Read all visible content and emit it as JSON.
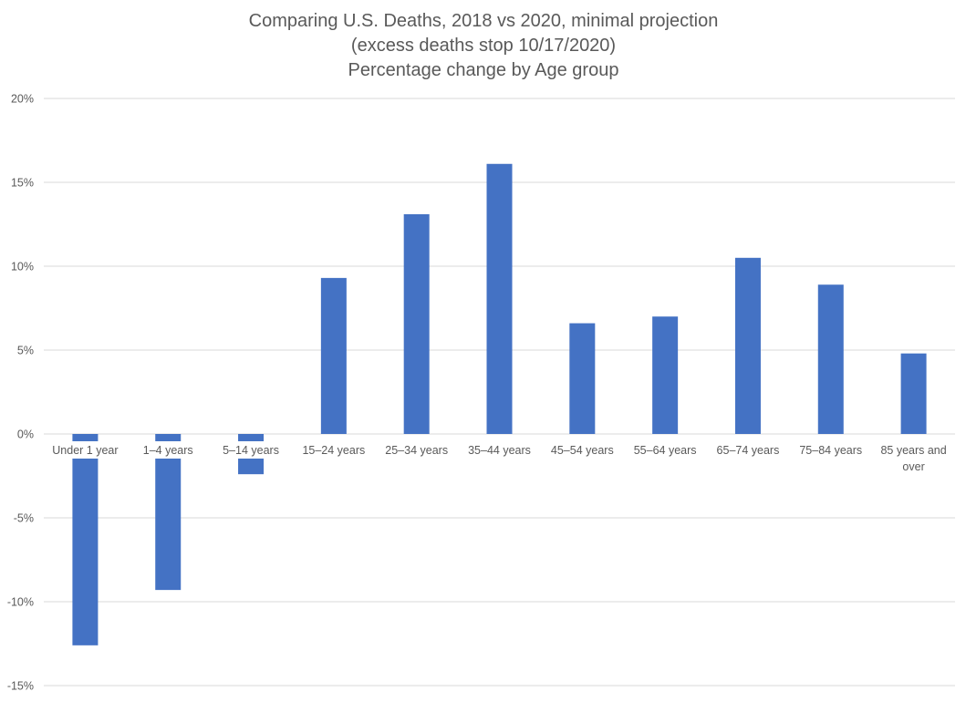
{
  "chart_data": {
    "type": "bar",
    "title": [
      "Comparing U.S. Deaths, 2018 vs 2020, minimal projection",
      "(excess deaths stop 10/17/2020)",
      "Percentage change by Age group"
    ],
    "xlabel": "",
    "ylabel": "",
    "ylim": [
      -15,
      20
    ],
    "yticks": [
      20,
      15,
      10,
      5,
      0,
      -5,
      -10,
      -15
    ],
    "ytick_labels": [
      "20%",
      "15%",
      "10%",
      "5%",
      "0%",
      "-5%",
      "-10%",
      "-15%"
    ],
    "grid": true,
    "legend": "none",
    "bar_color": "#4472C4",
    "categories": [
      [
        "Under 1 year"
      ],
      [
        "1–4 years"
      ],
      [
        "5–14 years"
      ],
      [
        "15–24 years"
      ],
      [
        "25–34 years"
      ],
      [
        "35–44 years"
      ],
      [
        "45–54 years"
      ],
      [
        "55–64 years"
      ],
      [
        "65–74 years"
      ],
      [
        "75–84 years"
      ],
      [
        "85 years and",
        "over"
      ]
    ],
    "values": [
      -12.6,
      -9.3,
      -2.4,
      9.3,
      13.1,
      16.1,
      6.6,
      7.0,
      10.5,
      8.9,
      4.8
    ]
  }
}
